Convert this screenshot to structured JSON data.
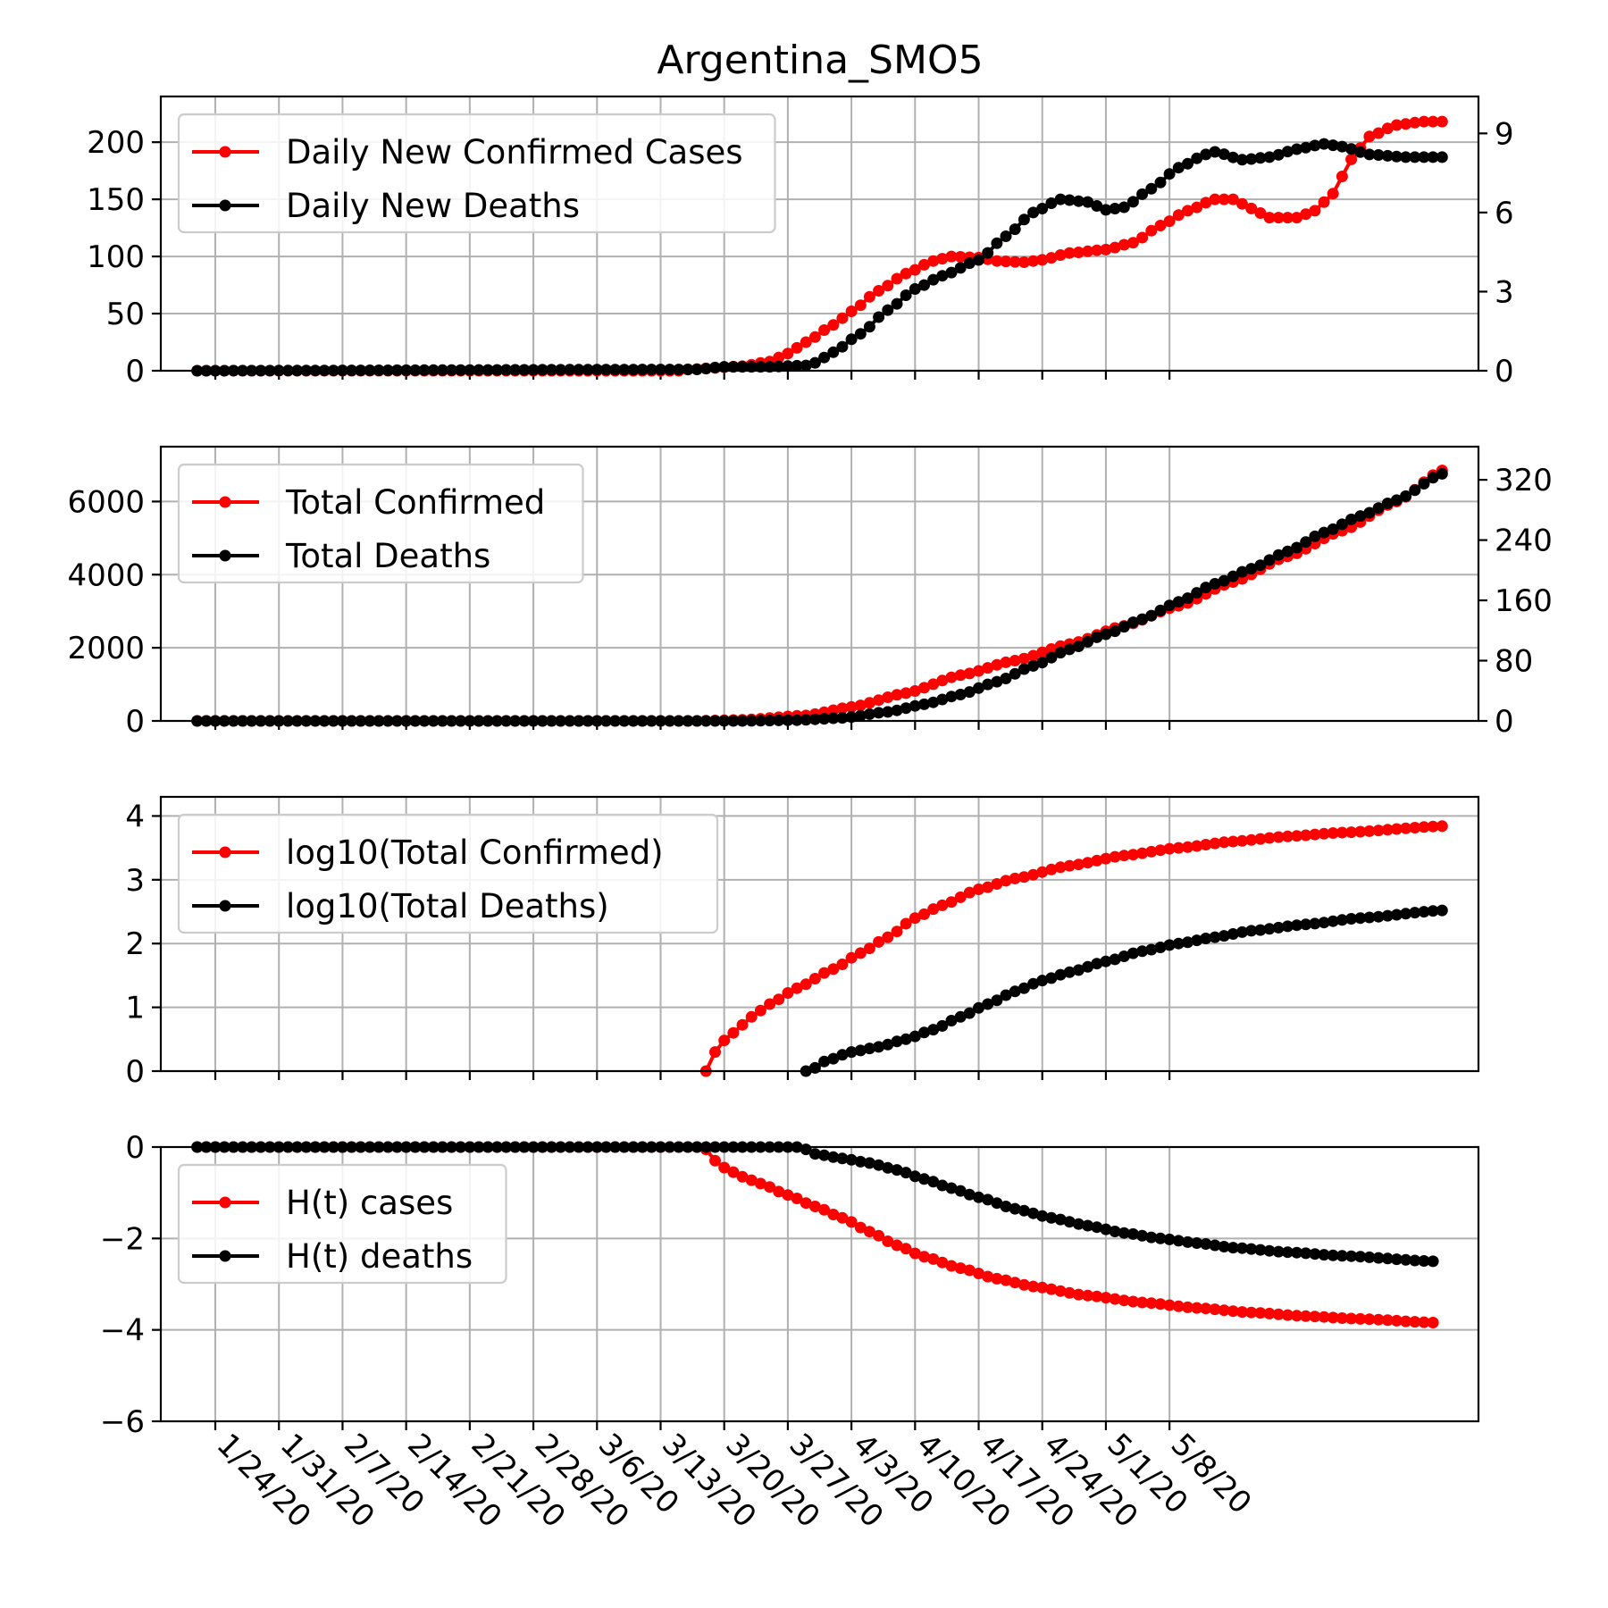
{
  "chart_data": {
    "title": "Argentina_SMO5",
    "x_start_date": "1/22/20",
    "n_days": 112,
    "x_ticks": [
      "1/24/20",
      "1/31/20",
      "2/7/20",
      "2/14/20",
      "2/21/20",
      "2/28/20",
      "3/6/20",
      "3/13/20",
      "3/20/20",
      "3/27/20",
      "4/3/20",
      "4/10/20",
      "4/17/20",
      "4/24/20",
      "5/1/20",
      "5/8/20"
    ],
    "colors": {
      "cases": "#ff0000",
      "deaths": "#000000"
    },
    "grid": true,
    "panels": [
      {
        "type": "line",
        "legend": [
          "Daily New Confirmed Cases",
          "Daily New Deaths"
        ],
        "legend_position": "upper-left",
        "ylim": [
          0,
          240
        ],
        "yticks": [
          "0",
          "50",
          "100",
          "150",
          "200"
        ],
        "yticks_right": [
          "0",
          "3",
          "6",
          "9"
        ],
        "ylim_right": [
          0,
          10.4
        ],
        "series": [
          {
            "axis": "left",
            "color": "cases",
            "anchors": [
              [
                0,
                0
              ],
              [
                53,
                0
              ],
              [
                54,
                1
              ],
              [
                56,
                2
              ],
              [
                60,
                4
              ],
              [
                63,
                8
              ],
              [
                65,
                15
              ],
              [
                67,
                25
              ],
              [
                70,
                40
              ],
              [
                72,
                52
              ],
              [
                75,
                70
              ],
              [
                78,
                85
              ],
              [
                81,
                96
              ],
              [
                83,
                100
              ],
              [
                86,
                99
              ],
              [
                88,
                96
              ],
              [
                91,
                95
              ],
              [
                93,
                97
              ],
              [
                96,
                103
              ],
              [
                100,
                106
              ],
              [
                103,
                112
              ],
              [
                106,
                127
              ],
              [
                109,
                140
              ],
              [
                112,
                150
              ],
              [
                114,
                150
              ],
              [
                116,
                142
              ],
              [
                118,
                134
              ],
              [
                121,
                134
              ],
              [
                123,
                140
              ],
              [
                125,
                155
              ],
              [
                127,
                185
              ],
              [
                129,
                205
              ],
              [
                132,
                215
              ],
              [
                135,
                218
              ],
              [
                137,
                218
              ]
            ]
          },
          {
            "axis": "right",
            "color": "deaths",
            "anchors": [
              [
                0,
                0
              ],
              [
                55,
                0.05
              ],
              [
                58,
                0.15
              ],
              [
                63,
                0.15
              ],
              [
                67,
                0.2
              ],
              [
                68,
                0.3
              ],
              [
                70,
                0.7
              ],
              [
                73,
                1.4
              ],
              [
                76,
                2.3
              ],
              [
                79,
                3.1
              ],
              [
                82,
                3.6
              ],
              [
                86,
                4.2
              ],
              [
                89,
                5.1
              ],
              [
                92,
                6.0
              ],
              [
                95,
                6.5
              ],
              [
                98,
                6.4
              ],
              [
                100,
                6.1
              ],
              [
                102,
                6.2
              ],
              [
                105,
                6.9
              ],
              [
                108,
                7.7
              ],
              [
                111,
                8.2
              ],
              [
                112,
                8.3
              ],
              [
                115,
                8.0
              ],
              [
                118,
                8.1
              ],
              [
                121,
                8.4
              ],
              [
                124,
                8.6
              ],
              [
                126,
                8.5
              ],
              [
                129,
                8.2
              ],
              [
                133,
                8.1
              ],
              [
                137,
                8.1
              ]
            ]
          }
        ]
      },
      {
        "type": "line",
        "legend": [
          "Total Confirmed",
          "Total Deaths"
        ],
        "legend_position": "upper-left",
        "ylim": [
          0,
          7500
        ],
        "yticks": [
          "0",
          "2000",
          "4000",
          "6000"
        ],
        "yticks_right": [
          "0",
          "80",
          "160",
          "240",
          "320"
        ],
        "ylim_right": [
          0,
          364
        ],
        "series": [
          {
            "axis": "left",
            "color": "cases",
            "anchors": [
              [
                0,
                0
              ],
              [
                55,
                0
              ],
              [
                60,
                30
              ],
              [
                67,
                150
              ],
              [
                72,
                380
              ],
              [
                78,
                760
              ],
              [
                84,
                1250
              ],
              [
                90,
                1650
              ],
              [
                96,
                2100
              ],
              [
                102,
                2600
              ],
              [
                108,
                3150
              ],
              [
                114,
                3800
              ],
              [
                120,
                4500
              ],
              [
                126,
                5200
              ],
              [
                132,
                6000
              ],
              [
                137,
                6850
              ]
            ]
          },
          {
            "axis": "right",
            "color": "deaths",
            "anchors": [
              [
                0,
                0
              ],
              [
                60,
                0
              ],
              [
                66,
                1
              ],
              [
                71,
                4
              ],
              [
                76,
                12
              ],
              [
                80,
                22
              ],
              [
                84,
                35
              ],
              [
                88,
                52
              ],
              [
                92,
                73
              ],
              [
                96,
                95
              ],
              [
                100,
                115
              ],
              [
                104,
                135
              ],
              [
                108,
                158
              ],
              [
                112,
                182
              ],
              [
                116,
                202
              ],
              [
                120,
                225
              ],
              [
                124,
                250
              ],
              [
                128,
                272
              ],
              [
                132,
                293
              ],
              [
                137,
                328
              ]
            ]
          }
        ]
      },
      {
        "type": "line",
        "legend": [
          "log10(Total Confirmed)",
          "log10(Total Deaths)"
        ],
        "legend_position": "upper-left",
        "ylim": [
          0,
          4.3
        ],
        "yticks": [
          "0",
          "1",
          "2",
          "3",
          "4"
        ],
        "series": [
          {
            "axis": "left",
            "color": "cases",
            "start": 56,
            "anchors": [
              [
                56,
                0
              ],
              [
                57,
                0.3
              ],
              [
                58,
                0.48
              ],
              [
                59,
                0.6
              ],
              [
                61,
                0.85
              ],
              [
                63,
                1.05
              ],
              [
                66,
                1.3
              ],
              [
                70,
                1.6
              ],
              [
                73,
                1.85
              ],
              [
                76,
                2.1
              ],
              [
                79,
                2.4
              ],
              [
                82,
                2.6
              ],
              [
                86,
                2.85
              ],
              [
                90,
                3.02
              ],
              [
                96,
                3.22
              ],
              [
                102,
                3.38
              ],
              [
                108,
                3.5
              ],
              [
                114,
                3.6
              ],
              [
                120,
                3.68
              ],
              [
                126,
                3.74
              ],
              [
                137,
                3.84
              ]
            ]
          },
          {
            "axis": "left",
            "color": "deaths",
            "start": 67,
            "anchors": [
              [
                67,
                0
              ],
              [
                68,
                0.05
              ],
              [
                69,
                0.15
              ],
              [
                72,
                0.3
              ],
              [
                75,
                0.38
              ],
              [
                78,
                0.5
              ],
              [
                81,
                0.65
              ],
              [
                84,
                0.85
              ],
              [
                87,
                1.05
              ],
              [
                90,
                1.25
              ],
              [
                93,
                1.42
              ],
              [
                96,
                1.55
              ],
              [
                100,
                1.72
              ],
              [
                104,
                1.88
              ],
              [
                108,
                2.0
              ],
              [
                112,
                2.1
              ],
              [
                116,
                2.2
              ],
              [
                122,
                2.3
              ],
              [
                128,
                2.4
              ],
              [
                137,
                2.52
              ]
            ]
          }
        ]
      },
      {
        "type": "line",
        "legend": [
          "H(t) cases",
          "H(t) deaths"
        ],
        "legend_position": "upper-left",
        "ylim": [
          -6,
          0
        ],
        "yticks": [
          "0",
          "−2",
          "−4",
          "−6"
        ],
        "series": [
          {
            "axis": "left",
            "color": "cases",
            "anchors": [
              [
                0,
                0
              ],
              [
                55,
                0
              ],
              [
                56,
                -0.05
              ],
              [
                57,
                -0.3
              ],
              [
                58,
                -0.45
              ],
              [
                60,
                -0.65
              ],
              [
                62,
                -0.8
              ],
              [
                65,
                -1.05
              ],
              [
                68,
                -1.3
              ],
              [
                71,
                -1.55
              ],
              [
                74,
                -1.85
              ],
              [
                77,
                -2.15
              ],
              [
                80,
                -2.4
              ],
              [
                84,
                -2.65
              ],
              [
                88,
                -2.88
              ],
              [
                92,
                -3.05
              ],
              [
                98,
                -3.25
              ],
              [
                104,
                -3.4
              ],
              [
                110,
                -3.52
              ],
              [
                116,
                -3.62
              ],
              [
                122,
                -3.7
              ],
              [
                128,
                -3.76
              ],
              [
                136,
                -3.84
              ]
            ]
          },
          {
            "axis": "left",
            "color": "deaths",
            "anchors": [
              [
                0,
                0
              ],
              [
                66,
                0
              ],
              [
                67,
                -0.05
              ],
              [
                68,
                -0.15
              ],
              [
                71,
                -0.25
              ],
              [
                74,
                -0.35
              ],
              [
                77,
                -0.5
              ],
              [
                80,
                -0.7
              ],
              [
                83,
                -0.9
              ],
              [
                86,
                -1.1
              ],
              [
                90,
                -1.35
              ],
              [
                94,
                -1.55
              ],
              [
                98,
                -1.72
              ],
              [
                102,
                -1.88
              ],
              [
                106,
                -2.0
              ],
              [
                110,
                -2.1
              ],
              [
                114,
                -2.2
              ],
              [
                120,
                -2.3
              ],
              [
                126,
                -2.38
              ],
              [
                136,
                -2.5
              ]
            ]
          }
        ]
      }
    ]
  }
}
